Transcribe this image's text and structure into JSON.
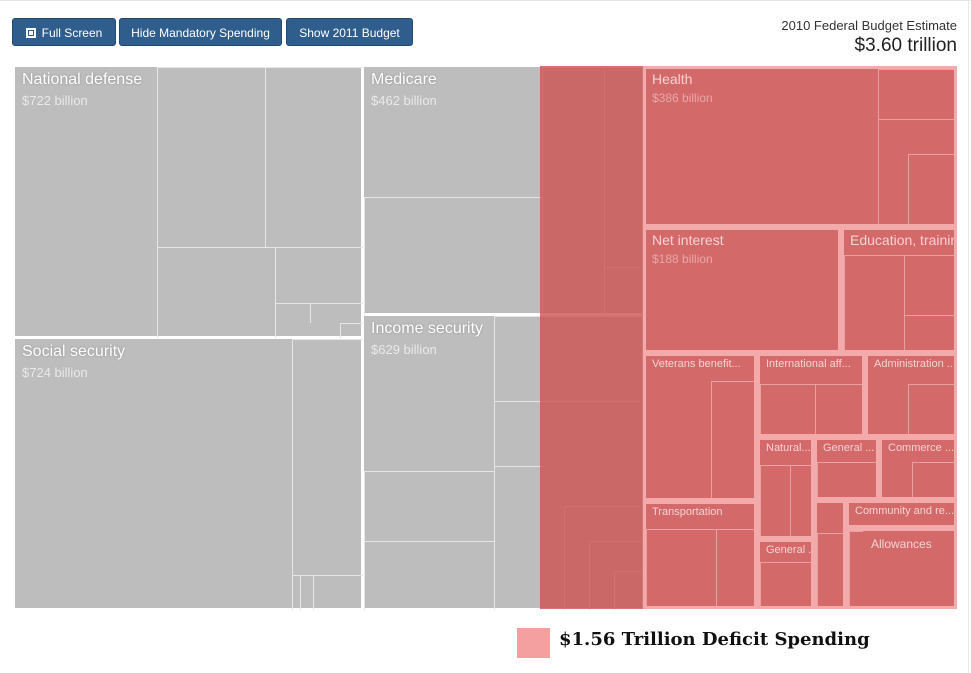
{
  "toolbar": {
    "full_screen_label": "Full Screen",
    "hide_mandatory_label": "Hide Mandatory Spending",
    "show_2011_label": "Show 2011 Budget",
    "full_screen_icon": "fullscreen-icon"
  },
  "estimate": {
    "label": "2010 Federal Budget Estimate",
    "value": "$3.60 trillion"
  },
  "tiles": {
    "national_defense": {
      "name": "National defense",
      "value": "$722 billion"
    },
    "social_security": {
      "name": "Social security",
      "value": "$724 billion"
    },
    "medicare": {
      "name": "Medicare",
      "value": "$462 billion"
    },
    "income_security": {
      "name": "Income security",
      "value": "$629 billion"
    },
    "health": {
      "name": "Health",
      "value": "$386 billion"
    },
    "net_interest": {
      "name": "Net interest",
      "value": "$188 billion"
    },
    "education": {
      "name": "Education, trainin..."
    },
    "veterans": {
      "name": "Veterans benefit..."
    },
    "international": {
      "name": "International aff..."
    },
    "administration": {
      "name": "Administration ..."
    },
    "natural": {
      "name": "Natural..."
    },
    "general1": {
      "name": "General ..."
    },
    "commerce": {
      "name": "Commerce ..."
    },
    "community": {
      "name": "Community and re..."
    },
    "transportation": {
      "name": "Transportation"
    },
    "general2": {
      "name": "General ..."
    },
    "allowances": {
      "name": "Allowances"
    }
  },
  "colors": {
    "button": "#2f5d8c",
    "tile_gray": "#bdbdbd",
    "deficit_red": "#cd5252",
    "deficit_border": "#f2aaaa",
    "legend_swatch": "#f5a0a0"
  },
  "legend": {
    "text": "$1.56 Trillion Deficit Spending"
  }
}
